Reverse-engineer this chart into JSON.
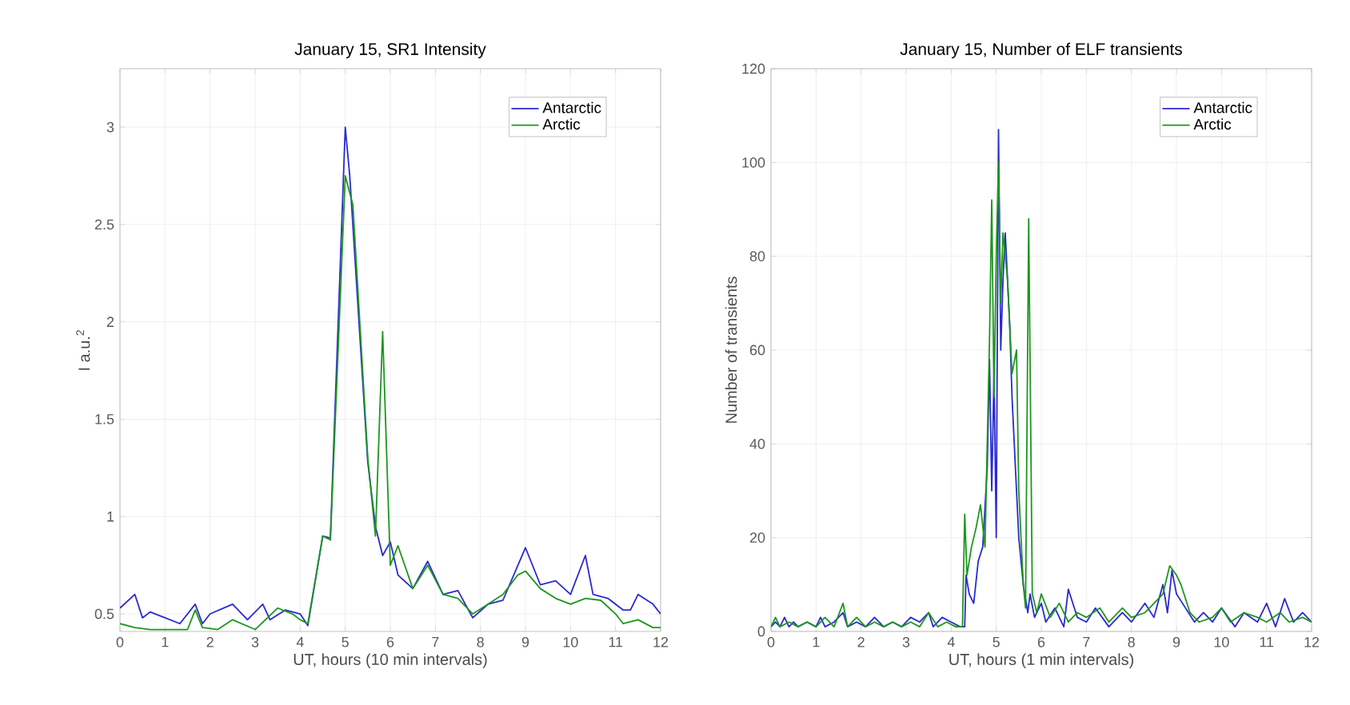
{
  "chart_data": [
    {
      "type": "line",
      "title": "January 15, SR1 Intensity",
      "xlabel": "UT, hours (10 min intervals)",
      "ylabel": "I a.u.$^{2}$",
      "xlim": [
        0,
        12
      ],
      "ylim": [
        0.41,
        3.3
      ],
      "xticks": [
        0,
        1,
        2,
        3,
        4,
        5,
        6,
        7,
        8,
        9,
        10,
        11,
        12
      ],
      "yticks": [
        0.5,
        1,
        1.5,
        2,
        2.5,
        3
      ],
      "grid": true,
      "legend": "top right",
      "series": [
        {
          "name": "Antarctic",
          "color": "#2a2ad0",
          "x": [
            0,
            0.33,
            0.5,
            0.67,
            1.0,
            1.33,
            1.67,
            1.83,
            2.0,
            2.5,
            2.83,
            3.17,
            3.33,
            3.67,
            4.0,
            4.17,
            4.5,
            4.67,
            5.0,
            5.1,
            5.5,
            5.67,
            5.83,
            6.0,
            6.17,
            6.5,
            6.83,
            7.17,
            7.5,
            7.83,
            8.17,
            8.5,
            9.0,
            9.33,
            9.67,
            10.0,
            10.33,
            10.5,
            10.83,
            11.17,
            11.33,
            11.5,
            11.83,
            12
          ],
          "values": [
            0.53,
            0.6,
            0.48,
            0.51,
            0.48,
            0.45,
            0.55,
            0.45,
            0.5,
            0.55,
            0.47,
            0.55,
            0.47,
            0.52,
            0.5,
            0.44,
            0.9,
            0.89,
            3.0,
            2.75,
            1.28,
            0.95,
            0.8,
            0.87,
            0.7,
            0.63,
            0.77,
            0.6,
            0.62,
            0.48,
            0.55,
            0.57,
            0.84,
            0.65,
            0.67,
            0.6,
            0.8,
            0.6,
            0.58,
            0.52,
            0.52,
            0.6,
            0.55,
            0.5
          ]
        },
        {
          "name": "Arctic",
          "color": "#1e961e",
          "x": [
            0,
            0.33,
            0.67,
            1.0,
            1.5,
            1.67,
            1.83,
            2.17,
            2.5,
            3.0,
            3.5,
            3.83,
            4.0,
            4.17,
            4.5,
            4.67,
            5.0,
            5.17,
            5.5,
            5.67,
            5.83,
            6.0,
            6.17,
            6.5,
            6.83,
            7.17,
            7.5,
            7.83,
            8.17,
            8.5,
            8.83,
            9.0,
            9.33,
            9.67,
            10.0,
            10.33,
            10.67,
            11.0,
            11.17,
            11.5,
            11.83,
            12
          ],
          "values": [
            0.45,
            0.43,
            0.42,
            0.42,
            0.42,
            0.52,
            0.43,
            0.42,
            0.47,
            0.42,
            0.53,
            0.5,
            0.47,
            0.45,
            0.9,
            0.88,
            2.75,
            2.6,
            1.3,
            0.9,
            1.95,
            0.75,
            0.85,
            0.63,
            0.75,
            0.6,
            0.58,
            0.5,
            0.55,
            0.6,
            0.7,
            0.72,
            0.63,
            0.58,
            0.55,
            0.58,
            0.57,
            0.5,
            0.45,
            0.47,
            0.43,
            0.43
          ]
        }
      ]
    },
    {
      "type": "line",
      "title": "January 15, Number of ELF transients",
      "xlabel": "UT, hours (1 min intervals)",
      "ylabel": "Number of transients",
      "xlim": [
        0,
        12
      ],
      "ylim": [
        0,
        120
      ],
      "xticks": [
        0,
        1,
        2,
        3,
        4,
        5,
        6,
        7,
        8,
        9,
        10,
        11,
        12
      ],
      "yticks": [
        0,
        20,
        40,
        60,
        80,
        100,
        120
      ],
      "grid": true,
      "legend": "top right",
      "series": [
        {
          "name": "Antarctic",
          "color": "#2a2ad0",
          "x": [
            0,
            0.1,
            0.2,
            0.3,
            0.4,
            0.5,
            0.6,
            0.8,
            1.0,
            1.1,
            1.2,
            1.4,
            1.6,
            1.7,
            1.9,
            2.1,
            2.3,
            2.5,
            2.7,
            2.9,
            3.1,
            3.3,
            3.5,
            3.6,
            3.8,
            4.0,
            4.2,
            4.3,
            4.33,
            4.4,
            4.5,
            4.6,
            4.7,
            4.8,
            4.85,
            4.9,
            4.95,
            5.0,
            5.05,
            5.1,
            5.15,
            5.2,
            5.3,
            5.35,
            5.45,
            5.5,
            5.6,
            5.7,
            5.75,
            5.85,
            6.0,
            6.1,
            6.3,
            6.5,
            6.6,
            6.8,
            7.0,
            7.2,
            7.5,
            7.8,
            8.0,
            8.3,
            8.5,
            8.7,
            8.8,
            8.9,
            9.0,
            9.2,
            9.4,
            9.6,
            9.8,
            10.0,
            10.3,
            10.5,
            10.8,
            11.0,
            11.2,
            11.4,
            11.6,
            11.8,
            12.0
          ],
          "values": [
            1,
            2,
            1,
            3,
            1,
            2,
            1,
            2,
            1,
            3,
            1,
            2,
            4,
            1,
            2,
            1,
            3,
            1,
            2,
            1,
            3,
            2,
            4,
            1,
            3,
            2,
            1,
            1,
            12,
            8,
            6,
            15,
            18,
            35,
            58,
            30,
            55,
            20,
            107,
            60,
            75,
            85,
            65,
            50,
            30,
            20,
            10,
            4,
            8,
            3,
            6,
            2,
            5,
            1,
            9,
            3,
            2,
            5,
            1,
            4,
            2,
            6,
            3,
            10,
            4,
            13,
            8,
            5,
            2,
            4,
            2,
            5,
            1,
            4,
            2,
            6,
            1,
            7,
            2,
            4,
            2
          ]
        },
        {
          "name": "Arctic",
          "color": "#1e961e",
          "x": [
            0,
            0.1,
            0.2,
            0.4,
            0.6,
            0.8,
            1.0,
            1.2,
            1.4,
            1.6,
            1.7,
            1.9,
            2.1,
            2.3,
            2.5,
            2.7,
            2.9,
            3.1,
            3.3,
            3.5,
            3.7,
            3.9,
            4.1,
            4.25,
            4.3,
            4.35,
            4.45,
            4.55,
            4.65,
            4.75,
            4.85,
            4.9,
            4.95,
            5.0,
            5.05,
            5.1,
            5.15,
            5.25,
            5.35,
            5.45,
            5.5,
            5.6,
            5.65,
            5.72,
            5.8,
            5.9,
            6.0,
            6.2,
            6.4,
            6.6,
            6.8,
            7.0,
            7.3,
            7.5,
            7.8,
            8.0,
            8.3,
            8.5,
            8.7,
            8.85,
            9.0,
            9.1,
            9.3,
            9.5,
            9.8,
            10.0,
            10.2,
            10.5,
            10.8,
            11.0,
            11.3,
            11.5,
            11.8,
            12.0
          ],
          "values": [
            1,
            3,
            1,
            2,
            1,
            2,
            1,
            3,
            1,
            6,
            1,
            3,
            1,
            2,
            1,
            2,
            1,
            2,
            1,
            4,
            1,
            2,
            1,
            1,
            25,
            12,
            18,
            22,
            27,
            18,
            62,
            92,
            50,
            80,
            100,
            70,
            85,
            75,
            55,
            60,
            30,
            10,
            5,
            88,
            8,
            4,
            8,
            3,
            6,
            2,
            4,
            3,
            5,
            2,
            5,
            3,
            4,
            6,
            8,
            14,
            12,
            10,
            4,
            2,
            3,
            5,
            2,
            4,
            3,
            2,
            4,
            2,
            3,
            2
          ]
        }
      ]
    }
  ]
}
